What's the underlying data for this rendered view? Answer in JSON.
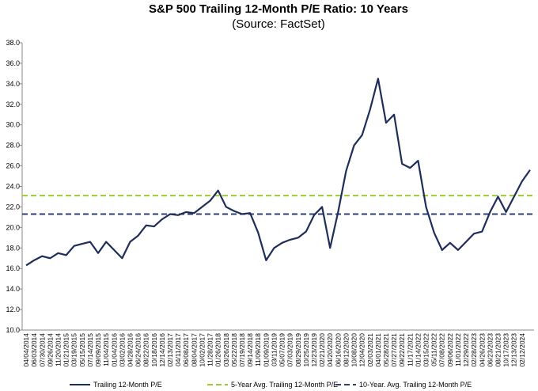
{
  "chart_data": {
    "type": "line",
    "title": "S&P 500 Trailing 12-Month P/E Ratio: 10 Years",
    "subtitle": "(Source: FactSet)",
    "categories": [
      "04/04/2014",
      "06/03/2014",
      "07/30/2014",
      "09/26/2014",
      "11/20/2014",
      "01/21/2015",
      "03/19/2015",
      "05/15/2015",
      "07/14/2015",
      "09/09/2015",
      "11/04/2015",
      "01/04/2016",
      "03/02/2016",
      "04/28/2016",
      "06/24/2016",
      "08/22/2016",
      "10/18/2016",
      "12/14/2016",
      "02/13/2017",
      "04/11/2017",
      "06/08/2017",
      "08/04/2017",
      "10/02/2017",
      "11/28/2017",
      "01/26/2018",
      "03/26/2018",
      "05/22/2018",
      "07/19/2018",
      "09/14/2018",
      "11/09/2018",
      "01/09/2019",
      "03/11/2019",
      "05/07/2019",
      "07/03/2019",
      "08/29/2019",
      "10/25/2019",
      "12/23/2019",
      "02/21/2020",
      "04/20/2020",
      "06/16/2020",
      "08/12/2020",
      "10/08/2020",
      "12/04/2020",
      "02/03/2021",
      "04/01/2021",
      "05/28/2021",
      "07/27/2021",
      "09/22/2021",
      "11/17/2021",
      "01/14/2022",
      "03/15/2022",
      "05/11/2022",
      "07/08/2022",
      "09/06/2022",
      "11/01/2022",
      "12/29/2022",
      "02/28/2023",
      "04/26/2023",
      "06/23/2023",
      "08/21/2023",
      "10/17/2023",
      "12/13/2023",
      "02/12/2024",
      null
    ],
    "series": [
      {
        "name": "Trailing 12-Month P/E",
        "color": "#1f2d5a",
        "values": [
          16.3,
          16.8,
          17.2,
          17.0,
          17.5,
          17.3,
          18.2,
          18.4,
          18.6,
          17.5,
          18.6,
          17.8,
          17.0,
          18.6,
          19.2,
          20.2,
          20.1,
          20.8,
          21.3,
          21.2,
          21.5,
          21.4,
          22.0,
          22.6,
          23.6,
          22.0,
          21.6,
          21.3,
          21.4,
          19.5,
          16.8,
          18.0,
          18.5,
          18.8,
          19.0,
          19.6,
          21.2,
          22.0,
          18.0,
          21.5,
          25.5,
          28.0,
          29.0,
          31.5,
          34.5,
          30.2,
          31.0,
          26.2,
          25.8,
          26.5,
          22.0,
          19.5,
          17.8,
          18.5,
          17.8,
          18.6,
          19.4,
          19.6,
          21.5,
          23.0,
          21.5,
          23.0,
          24.5,
          25.6
        ]
      }
    ],
    "reference_lines": [
      {
        "name": "5-Year Avg. Trailing 12-Month P/E",
        "color": "#99cc33",
        "value": 23.1
      },
      {
        "name": "10-Year. Avg. Trailing 12-Month P/E",
        "color": "#2e3f73",
        "value": 21.3
      }
    ],
    "ylim": [
      10,
      38
    ],
    "yticks": [
      {
        "value": 10,
        "label": "10.0"
      },
      {
        "value": 12,
        "label": "12.0"
      },
      {
        "value": 14,
        "label": "14.0"
      },
      {
        "value": 16,
        "label": "16.0"
      },
      {
        "value": 18,
        "label": "18.0"
      },
      {
        "value": 20,
        "label": "20.0"
      },
      {
        "value": 22,
        "label": "22.0"
      },
      {
        "value": 24,
        "label": "24.0"
      },
      {
        "value": 26,
        "label": "26.0"
      },
      {
        "value": 28,
        "label": "28.0"
      },
      {
        "value": 30,
        "label": "30.0"
      },
      {
        "value": 32,
        "label": "32.0"
      },
      {
        "value": 34,
        "label": "34.0"
      },
      {
        "value": 36,
        "label": "36.0"
      },
      {
        "value": 38,
        "label": "38.0"
      }
    ],
    "grid": false
  }
}
